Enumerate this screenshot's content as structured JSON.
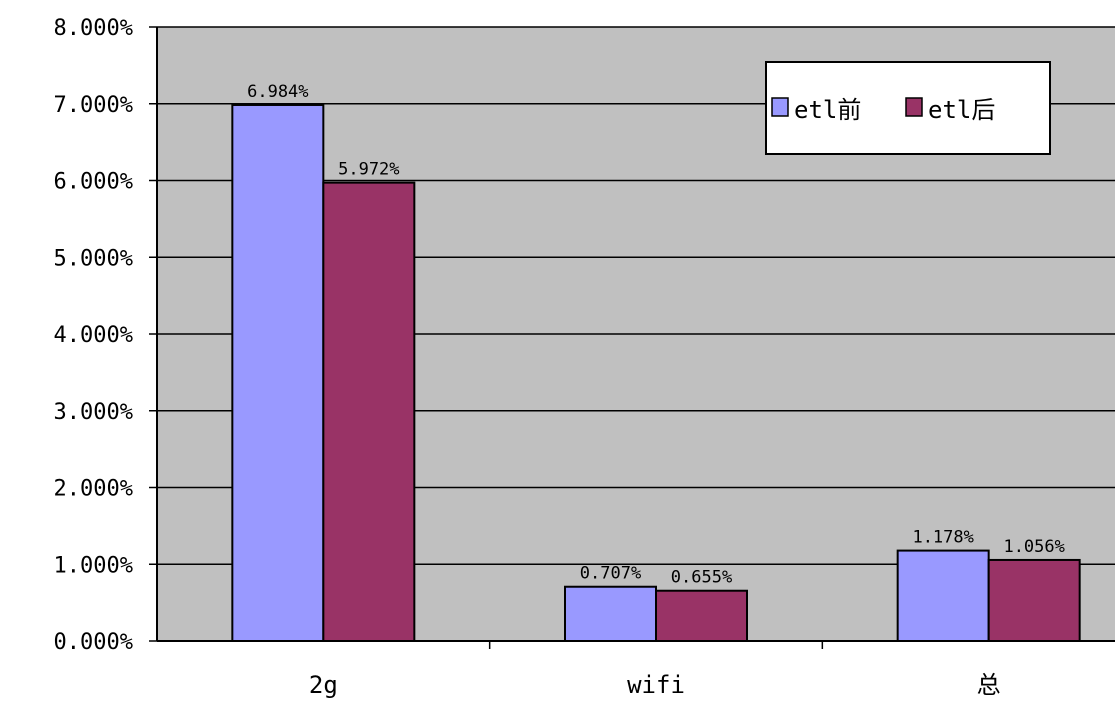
{
  "chart_data": {
    "type": "bar",
    "title": "",
    "xlabel": "",
    "ylabel": "",
    "categories": [
      "2g",
      "wifi",
      "总"
    ],
    "series": [
      {
        "name": "etl前",
        "color": "#9999ff",
        "values": [
          6.984,
          0.707,
          1.178
        ],
        "labels": [
          "6.984%",
          "0.707%",
          "1.178%"
        ]
      },
      {
        "name": "etl后",
        "color": "#993366",
        "values": [
          5.972,
          0.655,
          1.056
        ],
        "labels": [
          "5.972%",
          "0.655%",
          "1.056%"
        ]
      }
    ],
    "ylim": [
      0,
      8
    ],
    "yticks": [
      0,
      1,
      2,
      3,
      4,
      5,
      6,
      7,
      8
    ],
    "ytick_labels": [
      "0.000%",
      "1.000%",
      "2.000%",
      "3.000%",
      "4.000%",
      "5.000%",
      "6.000%",
      "7.000%",
      "8.000%"
    ],
    "grid": true,
    "plot_background": "#c0c0c0",
    "legend_position": "top-right"
  }
}
